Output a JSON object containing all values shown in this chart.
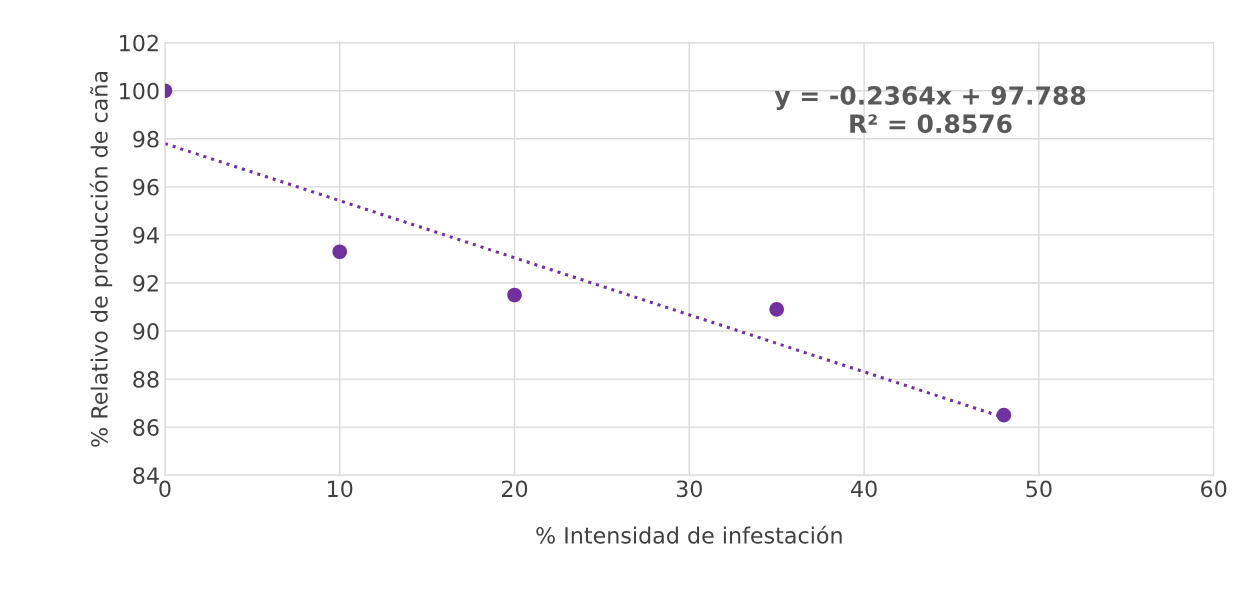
{
  "chart_data": {
    "type": "scatter",
    "xlabel": "% Intensidad de infestación",
    "ylabel": "% Relativo de producción de caña",
    "series": [
      {
        "color": "#7030a0",
        "x": [
          0,
          10,
          20,
          35,
          48
        ],
        "values": [
          100,
          93.3,
          91.5,
          90.9,
          86.5
        ],
        "marker": "circle"
      },
      {
        "type": "line",
        "color": "#7030a0",
        "x": [
          0,
          48
        ],
        "values": [
          97.8,
          86.4
        ],
        "line_style": "dotted",
        "marker": "none"
      }
    ],
    "annotations": [
      "y = -0.2364x + 97.788\nR² = 0.8576"
    ],
    "xlim": [
      0,
      60
    ],
    "xticks": [
      0,
      10,
      20,
      30,
      40,
      50,
      60
    ],
    "ylim": [
      84,
      102
    ],
    "yticks": [
      84,
      86,
      88,
      90,
      92,
      94,
      96,
      98,
      100,
      102
    ],
    "grid": true,
    "legend": false
  }
}
